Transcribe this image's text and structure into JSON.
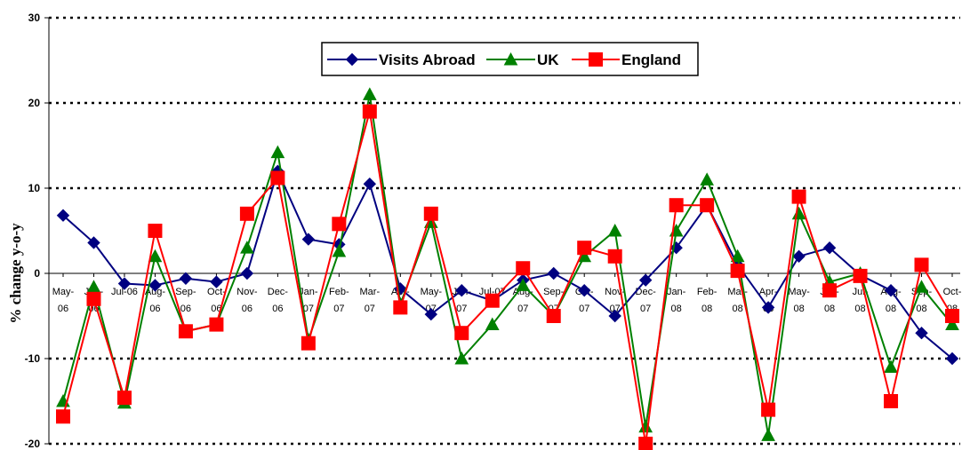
{
  "chart_data": {
    "type": "line",
    "ylabel": "% change y-o-y",
    "xlabel": "",
    "ylim": [
      -20,
      30
    ],
    "yticks": [
      -20,
      -10,
      0,
      10,
      20,
      30
    ],
    "grid": "horizontal dotted",
    "legend": "top-center",
    "categories": [
      "May-06",
      "Jun-06",
      "Jul-06",
      "Aug-06",
      "Sep-06",
      "Oct-06",
      "Nov-06",
      "Dec-06",
      "Jan-07",
      "Feb-07",
      "Mar-07",
      "Apr-07",
      "May-07",
      "Jun-07",
      "Jul-07",
      "Aug-07",
      "Sep-07",
      "Oct-07",
      "Nov-07",
      "Dec-07",
      "Jan-08",
      "Feb-08",
      "Mar-08",
      "Apr-08",
      "May-08",
      "Jun-08",
      "Jul-08",
      "Aug-08",
      "Sep-08",
      "Oct-08"
    ],
    "category_labels": [
      [
        "May-",
        "06"
      ],
      [
        "Jun-",
        "06"
      ],
      [
        "Jul-06"
      ],
      [
        "Aug-",
        "06"
      ],
      [
        "Sep-",
        "06"
      ],
      [
        "Oct-",
        "06"
      ],
      [
        "Nov-",
        "06"
      ],
      [
        "Dec-",
        "06"
      ],
      [
        "Jan-",
        "07"
      ],
      [
        "Feb-",
        "07"
      ],
      [
        "Mar-",
        "07"
      ],
      [
        "Apr-",
        "07"
      ],
      [
        "May-",
        "07"
      ],
      [
        "Jun-",
        "07"
      ],
      [
        "Jul-07"
      ],
      [
        "Aug-",
        "07"
      ],
      [
        "Sep-",
        "07"
      ],
      [
        "Oct-",
        "07"
      ],
      [
        "Nov-",
        "07"
      ],
      [
        "Dec-",
        "07"
      ],
      [
        "Jan-",
        "08"
      ],
      [
        "Feb-",
        "08"
      ],
      [
        "Mar-",
        "08"
      ],
      [
        "Apr-",
        "08"
      ],
      [
        "May-",
        "08"
      ],
      [
        "Jun-",
        "08"
      ],
      [
        "Jul-",
        "08"
      ],
      [
        "Aug-",
        "08"
      ],
      [
        "Sep-",
        "08"
      ],
      [
        "Oct-",
        "08"
      ]
    ],
    "series": [
      {
        "name": "Visits Abroad",
        "color": "#000080",
        "marker": "diamond",
        "values": [
          6.8,
          3.6,
          -1.2,
          -1.4,
          -0.6,
          -1.0,
          0.0,
          12.0,
          4.0,
          3.4,
          10.5,
          -1.8,
          -4.8,
          -2.0,
          -3.2,
          -0.8,
          0.0,
          -2.0,
          -5.0,
          -0.8,
          3.0,
          8.0,
          1.0,
          -4.0,
          2.0,
          3.0,
          -0.2,
          -2.0,
          -7.0,
          -10.0
        ]
      },
      {
        "name": "UK",
        "color": "#008000",
        "marker": "triangle",
        "values": [
          -15.0,
          -1.6,
          -15.2,
          2.0,
          -6.8,
          -6.0,
          3.0,
          14.2,
          -7.8,
          2.6,
          21.0,
          -3.6,
          6.0,
          -10.0,
          -6.0,
          -1.4,
          -5.0,
          2.0,
          5.0,
          -18.0,
          5.0,
          11.0,
          2.0,
          -19.0,
          7.0,
          -1.0,
          0.0,
          -11.0,
          -1.6,
          -6.0
        ]
      },
      {
        "name": "England",
        "color": "#ff0000",
        "marker": "square",
        "values": [
          -16.8,
          -3.0,
          -14.6,
          5.0,
          -6.8,
          -6.0,
          7.0,
          11.2,
          -8.2,
          5.8,
          19.0,
          -4.0,
          7.0,
          -7.0,
          -3.2,
          0.6,
          -5.0,
          3.0,
          2.0,
          -20.0,
          8.0,
          8.0,
          0.3,
          -16.0,
          9.0,
          -2.0,
          -0.3,
          -15.0,
          1.0,
          -5.0
        ]
      }
    ]
  }
}
